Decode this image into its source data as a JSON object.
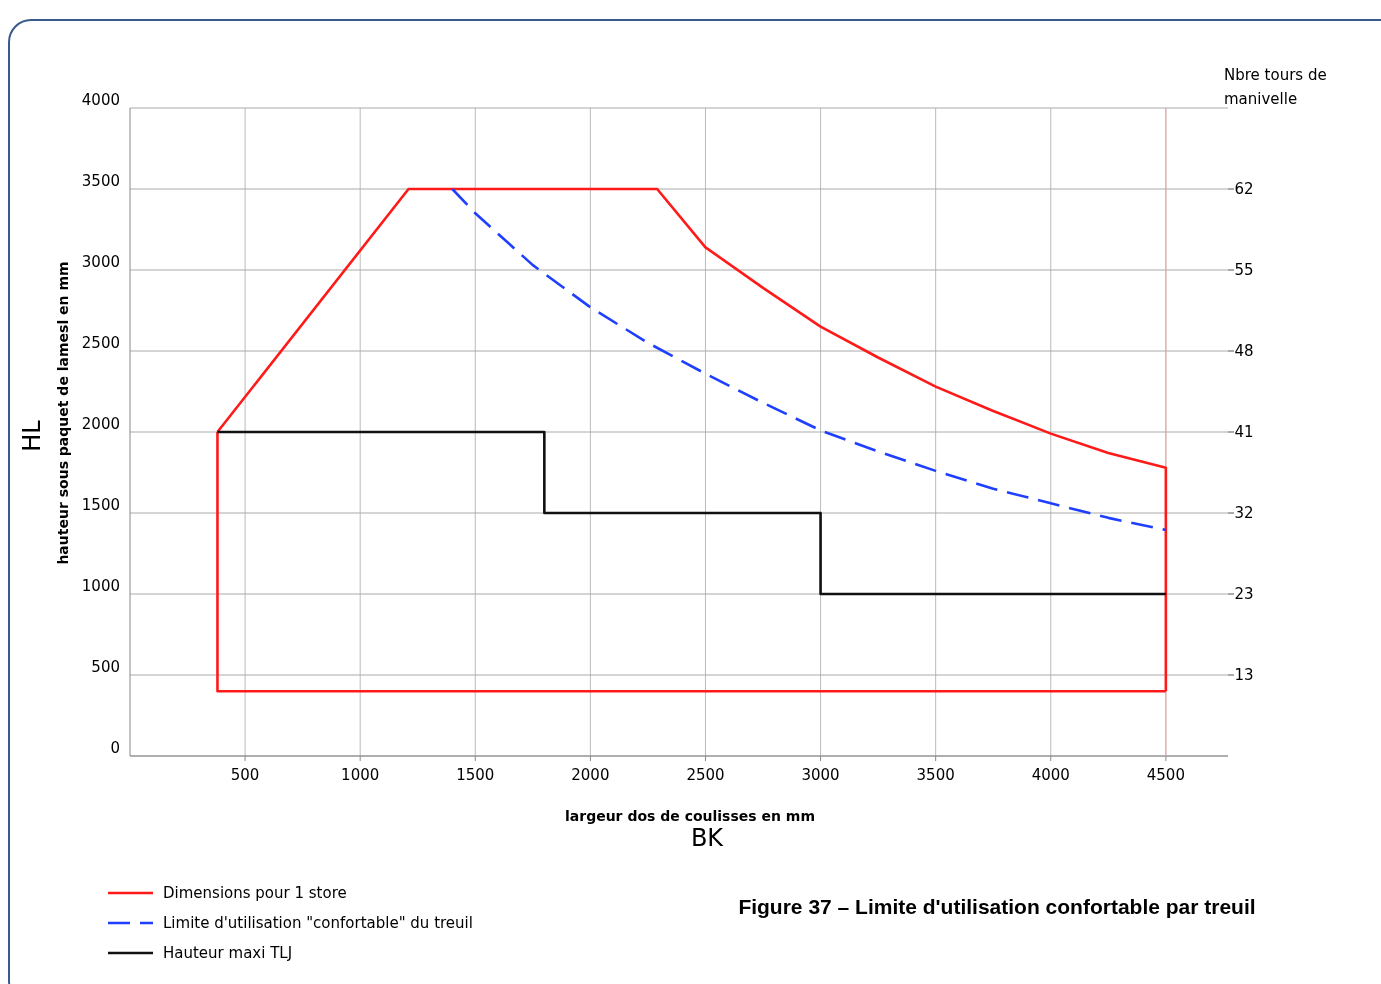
{
  "chart_data": {
    "type": "line",
    "xlabel": "largeur dos de coulisses en mm",
    "ylabel": "hauteur sous paquet de lamesl en mm",
    "y2label": "Nbre tours de manivelle",
    "annotations": [
      "HL",
      "BK",
      "Figure 37 – Limite d'utilisation confortable par treuil",
      "13",
      "23",
      "32",
      "41",
      "48",
      "55",
      "62"
    ],
    "xlim": [
      0,
      4770
    ],
    "xticks": [
      500,
      1000,
      1500,
      2000,
      2500,
      3000,
      3500,
      4000,
      4500
    ],
    "ylim": [
      0,
      4000
    ],
    "yticks": [
      0,
      500,
      1000,
      1500,
      2000,
      2500,
      3000,
      3500,
      4000
    ],
    "grid": true,
    "legend": "bottom left",
    "marker": "none",
    "ref_lines": [
      {
        "axis": "x",
        "value": 4500,
        "color": "#f0a0a0"
      }
    ],
    "series": [
      {
        "name": "Dimensions pour 1 store",
        "color": "#ff1a1a",
        "line_style": "solid",
        "x": [
          380,
          1210,
          2290,
          2500,
          2750,
          3000,
          3250,
          3500,
          3750,
          4000,
          4250,
          4500,
          4500
        ],
        "values": [
          2000,
          3500,
          3500,
          3140,
          2890,
          2650,
          2460,
          2280,
          2130,
          1990,
          1870,
          1780,
          400
        ]
      },
      {
        "color": "#ff1a1a",
        "line_style": "solid",
        "x": [
          380,
          380,
          4500
        ],
        "values": [
          2000,
          400,
          400
        ]
      },
      {
        "name": "Limite d'utilisation \"confortable\" du treuil",
        "color": "#1f3fff",
        "line_style": "dashed",
        "x": [
          1400,
          1500,
          1750,
          2000,
          2250,
          2500,
          2750,
          3000,
          3250,
          3500,
          3750,
          4000,
          4250,
          4500
        ],
        "values": [
          3500,
          3350,
          3030,
          2770,
          2550,
          2360,
          2180,
          2010,
          1880,
          1760,
          1650,
          1560,
          1470,
          1395
        ]
      },
      {
        "name": "Hauteur maxi TLJ",
        "color": "#111111",
        "line_style": "solid",
        "x": [
          380,
          1800,
          1800,
          3000,
          3000,
          4500
        ],
        "values": [
          2000,
          2000,
          1500,
          1500,
          1000,
          1000
        ]
      }
    ]
  }
}
